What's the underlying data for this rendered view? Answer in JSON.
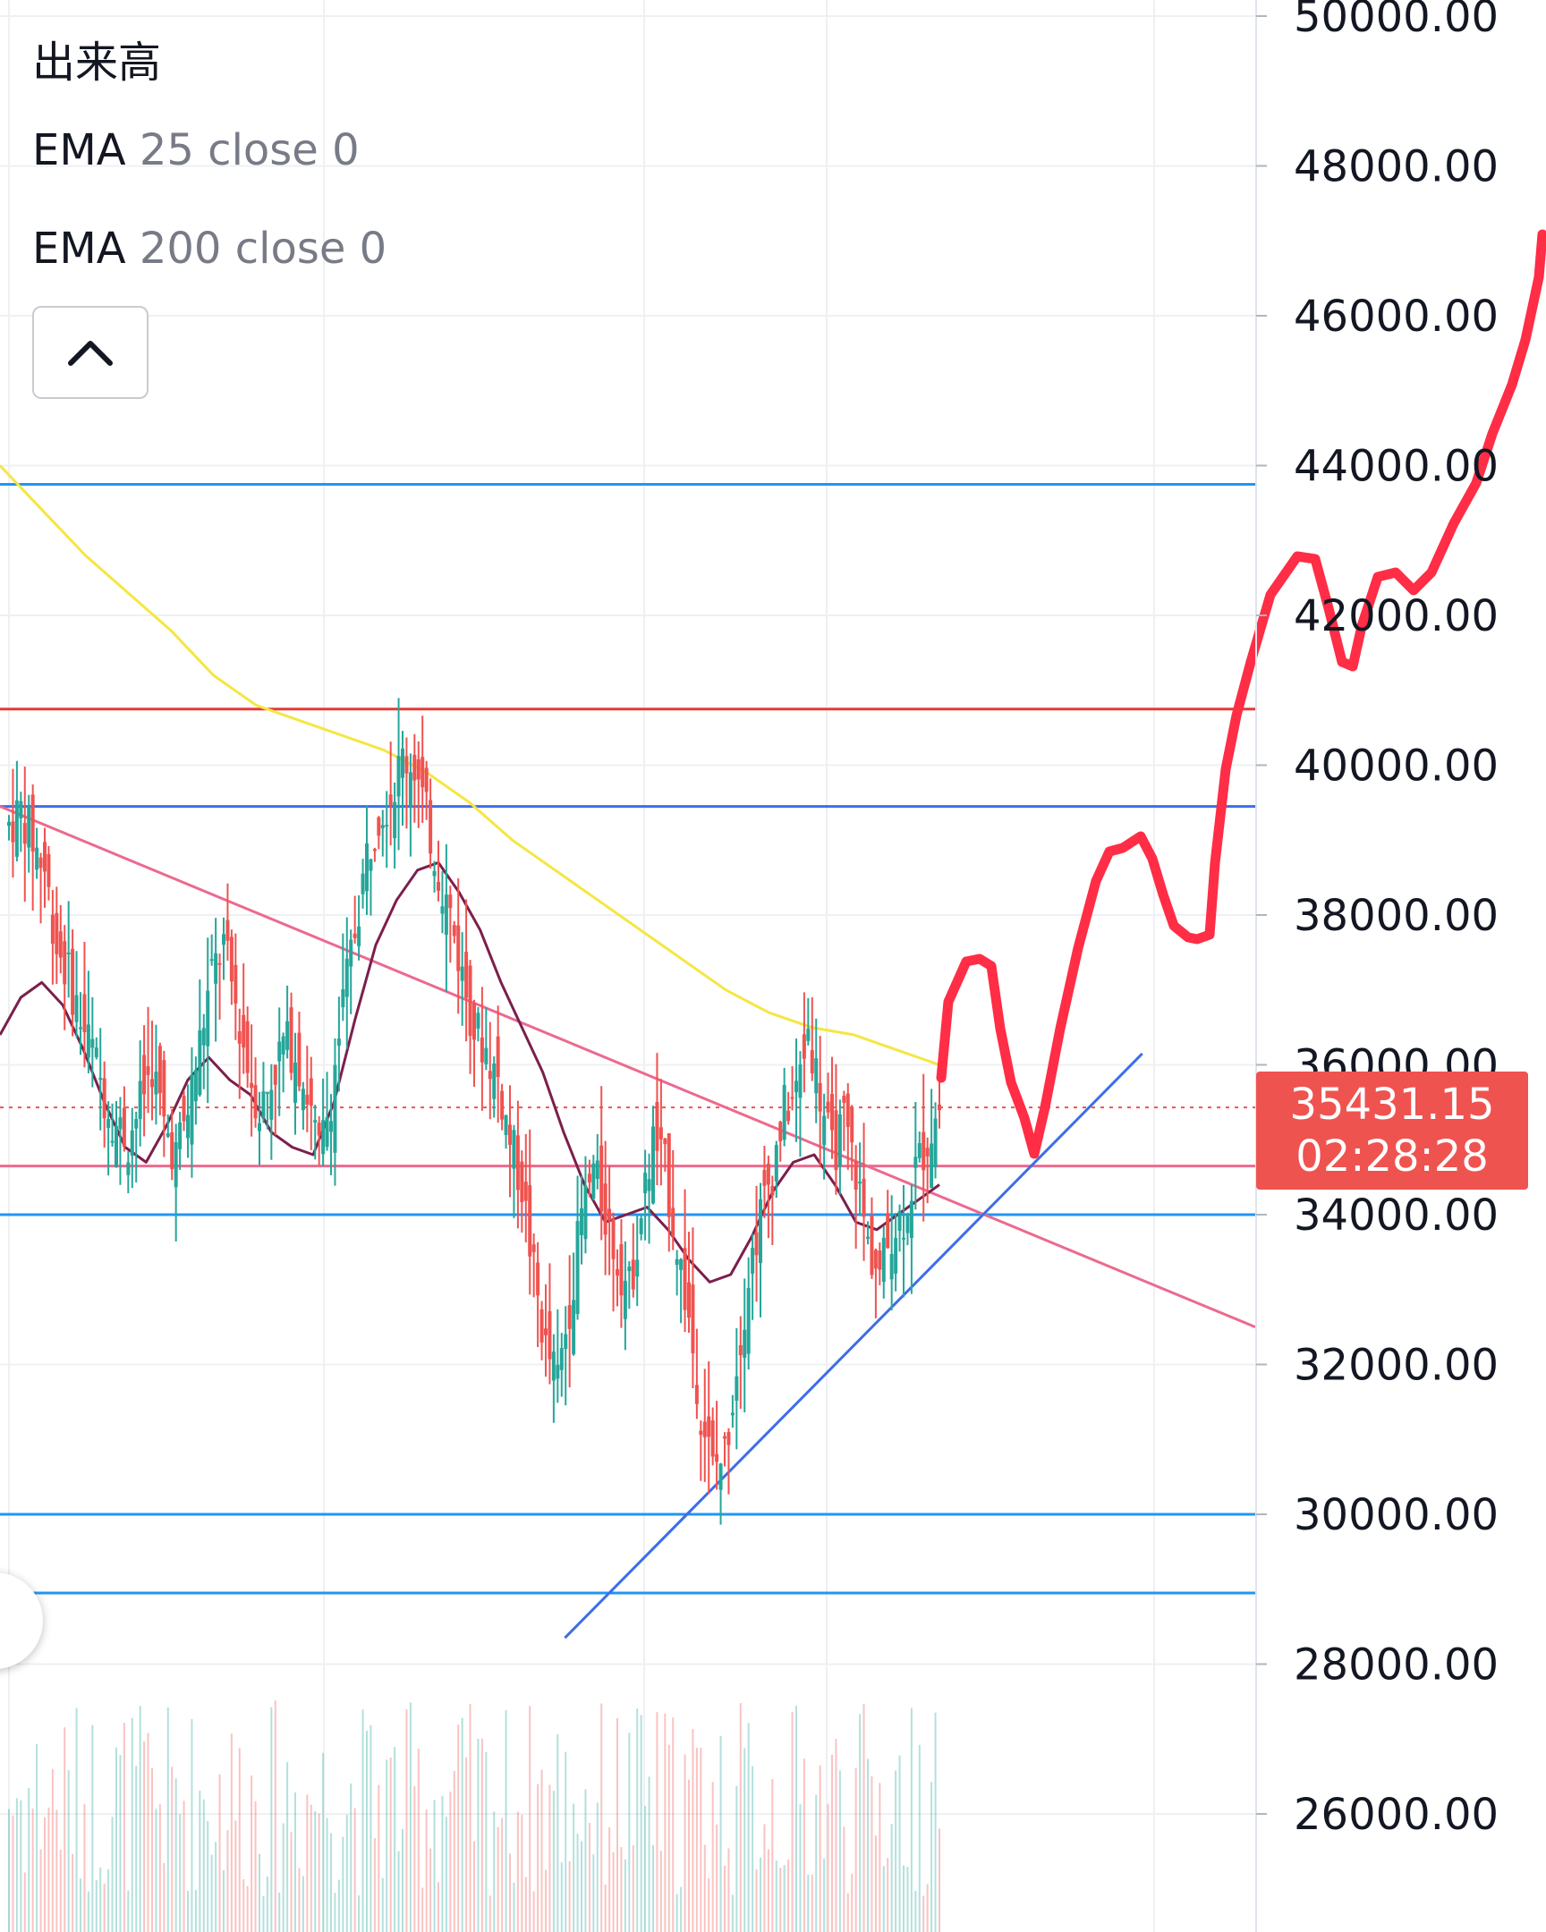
{
  "legend": {
    "volume_label": "出来高",
    "ema25_name": "EMA",
    "ema25_params": "25 close 0",
    "ema200_name": "EMA",
    "ema200_params": "200 close 0"
  },
  "price_tag": {
    "price": "35431.15",
    "countdown": "02:28:28",
    "color": "#ef5350"
  },
  "colors": {
    "up": "#26a69a",
    "down": "#ef5350",
    "ema25": "#7b1f4b",
    "ema200": "#f5e642",
    "support": "#2196f3",
    "resistance": "#e53935",
    "trendline_pink": "#ec6a8f",
    "trendline_blue": "#3d6de8",
    "drawing": "#ff2d45"
  },
  "icons": {
    "collapse": "chevron-up-icon"
  },
  "chart_data": {
    "type": "candlestick",
    "y_axis": {
      "min": 25000,
      "max": 50500,
      "ticks": [
        "50000.00",
        "48000.00",
        "46000.00",
        "44000.00",
        "42000.00",
        "40000.00",
        "38000.00",
        "36000.00",
        "34000.00",
        "32000.00",
        "30000.00",
        "28000.00",
        "26000.00"
      ]
    },
    "close_path": [
      39200,
      39400,
      39000,
      38600,
      37600,
      37200,
      36600,
      36200,
      35600,
      35200,
      35000,
      35500,
      36000,
      35200,
      34800,
      35400,
      36300,
      37200,
      37600,
      36800,
      36000,
      35400,
      35800,
      36300,
      36200,
      35600,
      34800,
      35600,
      36800,
      37800,
      38800,
      39400,
      39600,
      40100,
      40000,
      39300,
      38600,
      38000,
      37200,
      36500,
      36200,
      35800,
      35000,
      34400,
      33200,
      32200,
      31800,
      32800,
      34000,
      34600,
      34000,
      33400,
      33000,
      34000,
      35000,
      34600,
      33600,
      32600,
      31400,
      30600,
      30800,
      32000,
      33200,
      34000,
      34600,
      35400,
      35600,
      36500,
      35600,
      34800,
      35200,
      34600,
      33600,
      33200,
      33800,
      34000,
      34600,
      35000,
      35431
    ],
    "ema25": [
      36400,
      36900,
      37100,
      36800,
      36200,
      35500,
      34900,
      34700,
      35200,
      35800,
      36100,
      35800,
      35600,
      35100,
      34900,
      34800,
      35500,
      36600,
      37600,
      38200,
      38600,
      38700,
      38300,
      37800,
      37100,
      36500,
      35900,
      35100,
      34400,
      33900,
      34000,
      34100,
      33800,
      33400,
      33100,
      33200,
      33700,
      34300,
      34700,
      34800,
      34400,
      33900,
      33800,
      34000,
      34200,
      34400
    ],
    "ema200": [
      44000,
      43400,
      42800,
      42300,
      41800,
      41200,
      40800,
      40600,
      40400,
      40200,
      39900,
      39500,
      39000,
      38600,
      38200,
      37800,
      37400,
      37000,
      36700,
      36500,
      36400,
      36200,
      36000
    ],
    "horizontal_levels": [
      {
        "price": 43750,
        "color": "support"
      },
      {
        "price": 40750,
        "color": "resistance"
      },
      {
        "price": 39450,
        "color": "trendline_blue"
      },
      {
        "price": 34650,
        "color": "trendline_pink"
      },
      {
        "price": 34000,
        "color": "support"
      },
      {
        "price": 30000,
        "color": "support"
      },
      {
        "price": 28950,
        "color": "support"
      }
    ],
    "trendlines": [
      {
        "from": [
          0,
          39450
        ],
        "to": [
          100,
          32500
        ],
        "color": "trendline_pink"
      },
      {
        "from": [
          45,
          28350
        ],
        "to": [
          91,
          36150
        ],
        "color": "trendline_blue"
      }
    ],
    "current_price": 35431.15,
    "grid": true
  }
}
